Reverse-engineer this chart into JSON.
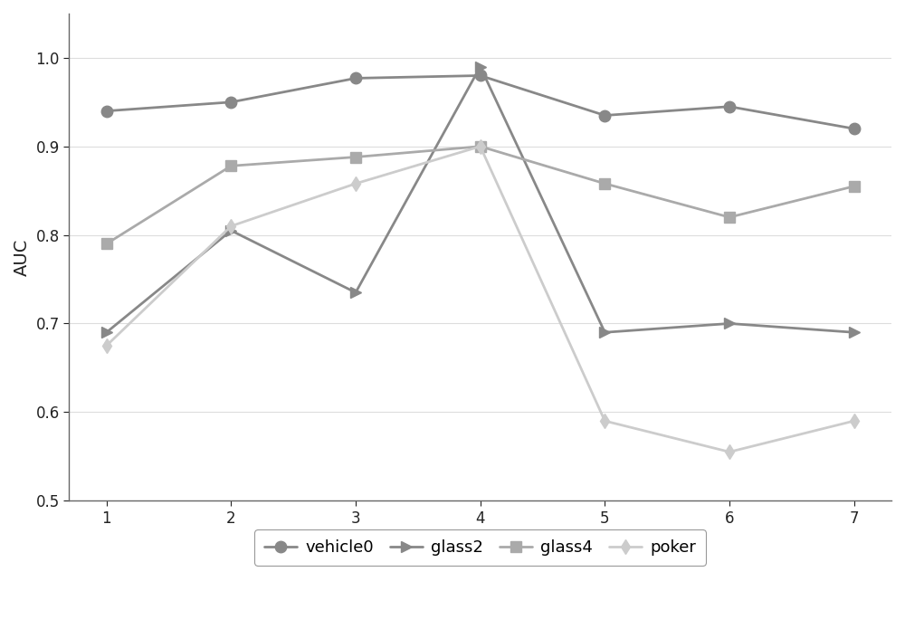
{
  "x": [
    1,
    2,
    3,
    4,
    5,
    6,
    7
  ],
  "vehicle0": [
    0.94,
    0.95,
    0.977,
    0.98,
    0.935,
    0.945,
    0.92
  ],
  "glass2": [
    0.69,
    0.805,
    0.735,
    0.99,
    0.69,
    0.7,
    0.69
  ],
  "glass4": [
    0.79,
    0.878,
    0.888,
    0.9,
    0.858,
    0.82,
    0.855
  ],
  "poker": [
    0.675,
    0.81,
    0.858,
    0.9,
    0.59,
    0.555,
    0.59
  ],
  "line_colors": {
    "vehicle0": "#888888",
    "glass2": "#888888",
    "glass4": "#aaaaaa",
    "poker": "#cccccc"
  },
  "markers": {
    "vehicle0": "o",
    "glass2": ">",
    "glass4": "s",
    "poker": "d"
  },
  "markersizes": {
    "vehicle0": 9,
    "glass2": 9,
    "glass4": 8,
    "poker": 8
  },
  "ylabel": "AUC",
  "ylim": [
    0.5,
    1.05
  ],
  "xlim": [
    0.7,
    7.3
  ],
  "yticks": [
    0.5,
    0.6,
    0.7,
    0.8,
    0.9,
    1.0
  ],
  "xticks": [
    1,
    2,
    3,
    4,
    5,
    6,
    7
  ],
  "legend_labels": [
    "vehicle0",
    "glass2",
    "glass4",
    "poker"
  ],
  "background_color": "#ffffff",
  "linewidth": 2.0,
  "grid_color": "#dddddd",
  "spine_color": "#666666"
}
